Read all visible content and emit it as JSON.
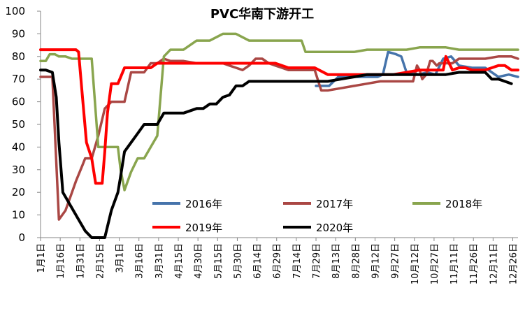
{
  "chart_data": {
    "type": "line",
    "title": "PVC华南下游开工",
    "xlabel": "",
    "ylabel": "",
    "ylim": [
      0,
      100
    ],
    "yticks": [
      0,
      10,
      20,
      30,
      40,
      50,
      60,
      70,
      80,
      90,
      100
    ],
    "grid": false,
    "legend_position": "bottom-center",
    "categories": [
      "1月1日",
      "1月16日",
      "1月31日",
      "2月15日",
      "3月1日",
      "3月16日",
      "3月31日",
      "4月15日",
      "4月30日",
      "5月15日",
      "5月30日",
      "6月14日",
      "6月29日",
      "7月14日",
      "7月29日",
      "8月13日",
      "8月28日",
      "9月12日",
      "9月27日",
      "10月12日",
      "10月27日",
      "11月11日",
      "11月26日",
      "12月11日",
      "12月26日"
    ],
    "series": [
      {
        "name": "2016年",
        "color": "#4674AB",
        "x": [
          211,
          221,
          228,
          242,
          255,
          258,
          262,
          266,
          272,
          276,
          280,
          284,
          289,
          296,
          302,
          308,
          314,
          320,
          330,
          340,
          350,
          358,
          365
        ],
        "y": [
          67,
          67,
          71,
          71,
          71,
          71,
          72,
          82,
          81,
          80,
          73,
          73,
          72,
          73,
          72,
          79,
          80,
          76,
          75,
          75,
          71,
          72,
          71
        ]
      },
      {
        "name": "2017年",
        "color": "#AA4744",
        "x": [
          1,
          8,
          10,
          15,
          20,
          25,
          28,
          33,
          35,
          40,
          45,
          50,
          55,
          60,
          65,
          70,
          75,
          80,
          85,
          90,
          95,
          100,
          110,
          120,
          130,
          140,
          145,
          150,
          155,
          160,
          165,
          170,
          175,
          180,
          185,
          190,
          195,
          200,
          205,
          210,
          215,
          220,
          230,
          240,
          250,
          260,
          265,
          270,
          275,
          280,
          285,
          288,
          290,
          292,
          295,
          298,
          300,
          303,
          305,
          310,
          315,
          320,
          325,
          330,
          340,
          350,
          360,
          365
        ],
        "y": [
          71,
          71,
          71,
          8,
          12,
          20,
          25,
          32,
          35,
          35,
          45,
          57,
          60,
          60,
          60,
          73,
          73,
          73,
          77,
          77,
          79,
          78,
          78,
          77,
          77,
          77,
          76,
          75,
          74,
          76,
          79,
          79,
          77,
          76,
          75,
          74,
          74,
          74,
          74,
          74,
          65,
          65,
          66,
          67,
          68,
          69,
          69,
          69,
          69,
          69,
          69,
          76,
          74,
          70,
          72,
          78,
          78,
          76,
          77,
          77,
          77,
          79,
          79,
          79,
          79,
          80,
          80,
          79
        ]
      },
      {
        "name": "2018年",
        "color": "#89A54E",
        "x": [
          1,
          5,
          8,
          12,
          15,
          20,
          25,
          30,
          35,
          40,
          45,
          50,
          55,
          60,
          62,
          65,
          70,
          75,
          80,
          85,
          90,
          95,
          100,
          110,
          120,
          130,
          140,
          150,
          160,
          170,
          180,
          190,
          200,
          203,
          205,
          210,
          215,
          220,
          230,
          240,
          250,
          260,
          270,
          280,
          290,
          300,
          310,
          320,
          330,
          340,
          350,
          360,
          365
        ],
        "y": [
          78,
          78,
          81,
          81,
          80,
          80,
          79,
          79,
          79,
          79,
          40,
          40,
          40,
          40,
          30,
          21,
          29,
          35,
          35,
          40,
          45,
          80,
          83,
          83,
          87,
          87,
          90,
          90,
          87,
          87,
          87,
          87,
          87,
          82,
          82,
          82,
          82,
          82,
          82,
          82,
          83,
          83,
          83,
          83,
          84,
          84,
          84,
          83,
          83,
          83,
          83,
          83,
          83
        ]
      },
      {
        "name": "2019年",
        "color": "#FF0000",
        "x": [
          1,
          10,
          20,
          25,
          28,
          30,
          33,
          36,
          40,
          43,
          45,
          48,
          50,
          52,
          55,
          60,
          65,
          70,
          75,
          80,
          85,
          90,
          95,
          100,
          110,
          120,
          130,
          140,
          150,
          160,
          170,
          180,
          190,
          200,
          210,
          220,
          230,
          240,
          250,
          260,
          270,
          280,
          290,
          300,
          305,
          308,
          310,
          315,
          320,
          325,
          330,
          340,
          345,
          350,
          355,
          360,
          365
        ],
        "y": [
          83,
          83,
          83,
          83,
          83,
          82,
          62,
          42,
          35,
          24,
          24,
          24,
          38,
          55,
          68,
          68,
          75,
          75,
          75,
          75,
          75,
          77,
          77,
          77,
          77,
          77,
          77,
          77,
          77,
          77,
          77,
          77,
          75,
          75,
          75,
          72,
          72,
          72,
          72,
          72,
          72,
          73,
          74,
          74,
          74,
          74,
          80,
          74,
          75,
          75,
          74,
          74,
          75,
          76,
          76,
          74,
          74
        ]
      },
      {
        "name": "2020年",
        "color": "#000000",
        "x": [
          1,
          5,
          10,
          13,
          15,
          18,
          20,
          25,
          30,
          35,
          40,
          45,
          48,
          50,
          55,
          60,
          62,
          65,
          70,
          75,
          80,
          85,
          90,
          95,
          100,
          110,
          120,
          125,
          130,
          135,
          140,
          145,
          150,
          155,
          160,
          170,
          180,
          190,
          200,
          210,
          220,
          230,
          240,
          250,
          260,
          270,
          280,
          290,
          300,
          310,
          320,
          330,
          340,
          345,
          350,
          355,
          360
        ],
        "y": [
          74,
          74,
          73,
          62,
          42,
          20,
          18,
          13,
          8,
          3,
          0,
          0,
          0,
          0,
          12,
          20,
          27,
          38,
          42,
          46,
          50,
          50,
          50,
          55,
          55,
          55,
          57,
          57,
          59,
          59,
          62,
          63,
          67,
          67,
          69,
          69,
          69,
          69,
          69,
          69,
          69,
          70,
          71,
          72,
          72,
          72,
          72,
          72,
          72,
          72,
          73,
          73,
          73,
          70,
          70,
          69,
          68
        ]
      }
    ]
  }
}
